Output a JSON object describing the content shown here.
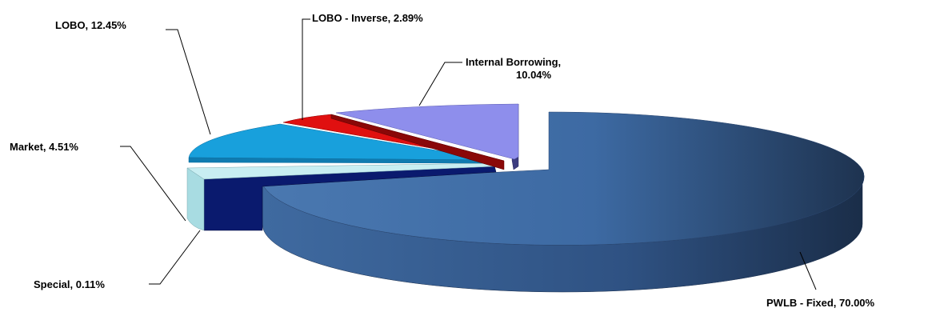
{
  "chart_data": {
    "type": "pie",
    "style": "3d-exploded",
    "title": "",
    "legend": "none",
    "slices": [
      {
        "label": "PWLB - Fixed, 70.00%",
        "name": "PWLB - Fixed",
        "value": 70.0,
        "color": "#4a78b0"
      },
      {
        "label": "Special, 0.11%",
        "name": "Special",
        "value": 0.11,
        "color": "#0a1a6e"
      },
      {
        "label": "Market, 4.51%",
        "name": "Market",
        "value": 4.51,
        "color": "#c8eef2"
      },
      {
        "label": "LOBO, 12.45%",
        "name": "LOBO",
        "value": 12.45,
        "color": "#18a0dc"
      },
      {
        "label": "LOBO - Inverse, 2.89%",
        "name": "LOBO - Inverse",
        "value": 2.89,
        "color": "#e01010"
      },
      {
        "label_lines": [
          "Internal Borrowing,",
          "10.04%"
        ],
        "name": "Internal Borrowing",
        "value": 10.04,
        "color": "#8e8eec"
      }
    ]
  }
}
